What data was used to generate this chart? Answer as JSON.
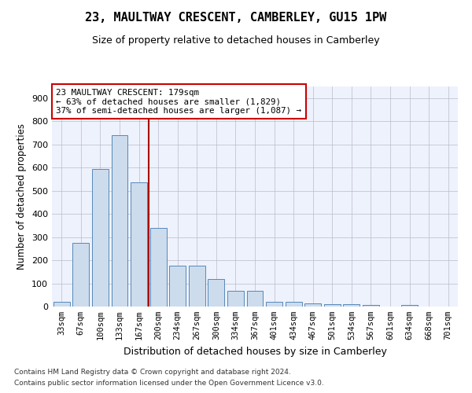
{
  "title": "23, MAULTWAY CRESCENT, CAMBERLEY, GU15 1PW",
  "subtitle": "Size of property relative to detached houses in Camberley",
  "xlabel": "Distribution of detached houses by size in Camberley",
  "ylabel": "Number of detached properties",
  "bar_color": "#ccdcec",
  "bar_edge_color": "#5588bb",
  "background_color": "#eef2fc",
  "grid_color": "#bbbbcc",
  "categories": [
    "33sqm",
    "67sqm",
    "100sqm",
    "133sqm",
    "167sqm",
    "200sqm",
    "234sqm",
    "267sqm",
    "300sqm",
    "334sqm",
    "367sqm",
    "401sqm",
    "434sqm",
    "467sqm",
    "501sqm",
    "534sqm",
    "567sqm",
    "601sqm",
    "634sqm",
    "668sqm",
    "701sqm"
  ],
  "values": [
    22,
    275,
    595,
    740,
    535,
    340,
    178,
    178,
    118,
    68,
    68,
    22,
    22,
    14,
    10,
    10,
    8,
    0,
    8,
    0,
    0
  ],
  "vline_x": 4.5,
  "annotation_text": "23 MAULTWAY CRESCENT: 179sqm\n← 63% of detached houses are smaller (1,829)\n37% of semi-detached houses are larger (1,087) →",
  "annotation_box_color": "#ffffff",
  "annotation_box_edge": "#cc0000",
  "vline_color": "#aa0000",
  "footnote1": "Contains HM Land Registry data © Crown copyright and database right 2024.",
  "footnote2": "Contains public sector information licensed under the Open Government Licence v3.0.",
  "ylim": [
    0,
    950
  ],
  "yticks": [
    0,
    100,
    200,
    300,
    400,
    500,
    600,
    700,
    800,
    900
  ]
}
